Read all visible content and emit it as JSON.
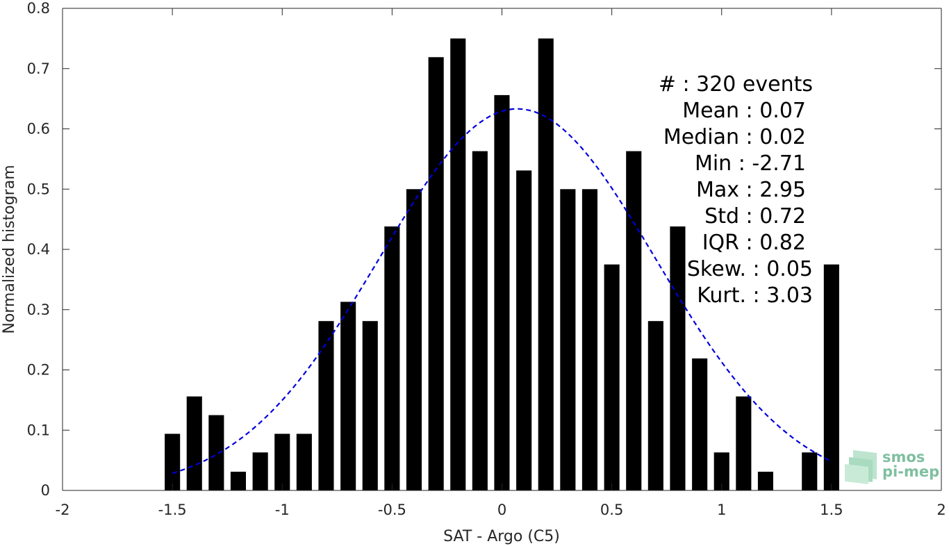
{
  "chart_data": {
    "type": "bar",
    "xlabel": "SAT - Argo (C5)",
    "ylabel": "Normalized histogram",
    "xlim": [
      -2,
      2
    ],
    "ylim": [
      0,
      0.8
    ],
    "x_ticks": [
      -2,
      -1.5,
      -1,
      -0.5,
      0,
      0.5,
      1,
      1.5,
      2
    ],
    "x_tick_labels": [
      "-2",
      "-1.5",
      "-1",
      "-0.5",
      "0",
      "0.5",
      "1",
      "1.5",
      "2"
    ],
    "y_ticks": [
      0,
      0.1,
      0.2,
      0.3,
      0.4,
      0.5,
      0.6,
      0.7,
      0.8
    ],
    "y_tick_labels": [
      "0",
      "0.1",
      "0.2",
      "0.3",
      "0.4",
      "0.5",
      "0.6",
      "0.7",
      "0.8"
    ],
    "grid": false,
    "bar_color": "#000000",
    "bin_width": 0.1,
    "bars": [
      {
        "x": -1.5,
        "y": 0.094
      },
      {
        "x": -1.4,
        "y": 0.156
      },
      {
        "x": -1.3,
        "y": 0.125
      },
      {
        "x": -1.2,
        "y": 0.031
      },
      {
        "x": -1.1,
        "y": 0.063
      },
      {
        "x": -1.0,
        "y": 0.094
      },
      {
        "x": -0.9,
        "y": 0.094
      },
      {
        "x": -0.8,
        "y": 0.281
      },
      {
        "x": -0.7,
        "y": 0.313
      },
      {
        "x": -0.6,
        "y": 0.281
      },
      {
        "x": -0.5,
        "y": 0.438
      },
      {
        "x": -0.4,
        "y": 0.5
      },
      {
        "x": -0.3,
        "y": 0.719
      },
      {
        "x": -0.2,
        "y": 0.75
      },
      {
        "x": -0.1,
        "y": 0.563
      },
      {
        "x": 0.0,
        "y": 0.656
      },
      {
        "x": 0.1,
        "y": 0.531
      },
      {
        "x": 0.2,
        "y": 0.75
      },
      {
        "x": 0.3,
        "y": 0.5
      },
      {
        "x": 0.4,
        "y": 0.5
      },
      {
        "x": 0.5,
        "y": 0.375
      },
      {
        "x": 0.6,
        "y": 0.563
      },
      {
        "x": 0.7,
        "y": 0.281
      },
      {
        "x": 0.8,
        "y": 0.438
      },
      {
        "x": 0.9,
        "y": 0.219
      },
      {
        "x": 1.0,
        "y": 0.063
      },
      {
        "x": 1.1,
        "y": 0.156
      },
      {
        "x": 1.2,
        "y": 0.031
      },
      {
        "x": 1.4,
        "y": 0.063
      },
      {
        "x": 1.5,
        "y": 0.375
      }
    ],
    "fit_curve": {
      "type": "normal",
      "mean": 0.07,
      "std": 0.63,
      "x_range": [
        -1.5,
        1.5
      ],
      "color": "#0000dd",
      "style": "dashed"
    },
    "stats": [
      {
        "label": "#  ",
        "value": ": 320 events"
      },
      {
        "label": "Mean ",
        "value": ": 0.07"
      },
      {
        "label": "Median ",
        "value": ": 0.02"
      },
      {
        "label": "Min ",
        "value": ": -2.71"
      },
      {
        "label": "Max ",
        "value": ": 2.95"
      },
      {
        "label": "Std ",
        "value": ": 0.72"
      },
      {
        "label": "IQR ",
        "value": ": 0.82"
      },
      {
        "label": "Skew. ",
        "value": ": 0.05"
      },
      {
        "label": "Kurt. ",
        "value": ": 3.03"
      }
    ],
    "logo": {
      "line1": "smos",
      "line2": "pi-mep"
    }
  }
}
